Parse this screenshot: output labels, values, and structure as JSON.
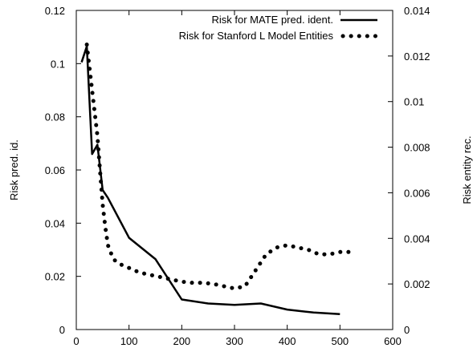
{
  "chart_data": {
    "type": "line",
    "title": "",
    "xlabel": "",
    "ylabel": "Risk pred. id.",
    "y2label": "Risk entity rec.",
    "xlim": [
      0,
      600
    ],
    "ylim": [
      0,
      0.12
    ],
    "y2lim": [
      0,
      0.014
    ],
    "x_ticks": [
      0,
      100,
      200,
      300,
      400,
      500,
      600
    ],
    "x_tick_labels": [
      "0",
      "100",
      "200",
      "300",
      "400",
      "500",
      "600"
    ],
    "y_ticks": [
      0,
      0.02,
      0.04,
      0.06,
      0.08,
      0.1,
      0.12
    ],
    "y_tick_labels": [
      "0",
      "0.02",
      "0.04",
      "0.06",
      "0.08",
      "0.1",
      "0.12"
    ],
    "y2_ticks": [
      0,
      0.002,
      0.004,
      0.006,
      0.008,
      0.01,
      0.012,
      0.014
    ],
    "y2_tick_labels": [
      "0",
      "0.002",
      "0.004",
      "0.006",
      "0.008",
      "0.01",
      "0.012",
      "0.014"
    ],
    "grid": false,
    "legend_position": "top-right",
    "series": [
      {
        "name": "Risk for MATE pred. ident.",
        "axis": "left",
        "style": "solid",
        "color": "#000000",
        "x": [
          10,
          20,
          30,
          40,
          50,
          60,
          100,
          150,
          200,
          250,
          300,
          350,
          400,
          450,
          500
        ],
        "y": [
          0.1005,
          0.1065,
          0.066,
          0.0695,
          0.0525,
          0.0495,
          0.0345,
          0.0265,
          0.0113,
          0.0098,
          0.0093,
          0.0098,
          0.0075,
          0.0064,
          0.0058
        ]
      },
      {
        "name": "Risk for Stanford L Model Entities",
        "axis": "right",
        "style": "dotted",
        "color": "#000000",
        "x": [
          20,
          25,
          30,
          35,
          40,
          45,
          50,
          55,
          60,
          70,
          80,
          90,
          100,
          120,
          140,
          160,
          180,
          200,
          220,
          240,
          260,
          280,
          300,
          320,
          340,
          360,
          380,
          400,
          420,
          440,
          460,
          480,
          500,
          520
        ],
        "y": [
          0.0125,
          0.0115,
          0.0105,
          0.0095,
          0.0085,
          0.007,
          0.0055,
          0.0045,
          0.0037,
          0.0031,
          0.0029,
          0.0028,
          0.0027,
          0.0025,
          0.0024,
          0.0023,
          0.0022,
          0.0021,
          0.00205,
          0.00205,
          0.002,
          0.0019,
          0.0018,
          0.0019,
          0.0026,
          0.0033,
          0.0036,
          0.0037,
          0.0036,
          0.0035,
          0.0033,
          0.0033,
          0.0034,
          0.0034
        ]
      }
    ]
  }
}
